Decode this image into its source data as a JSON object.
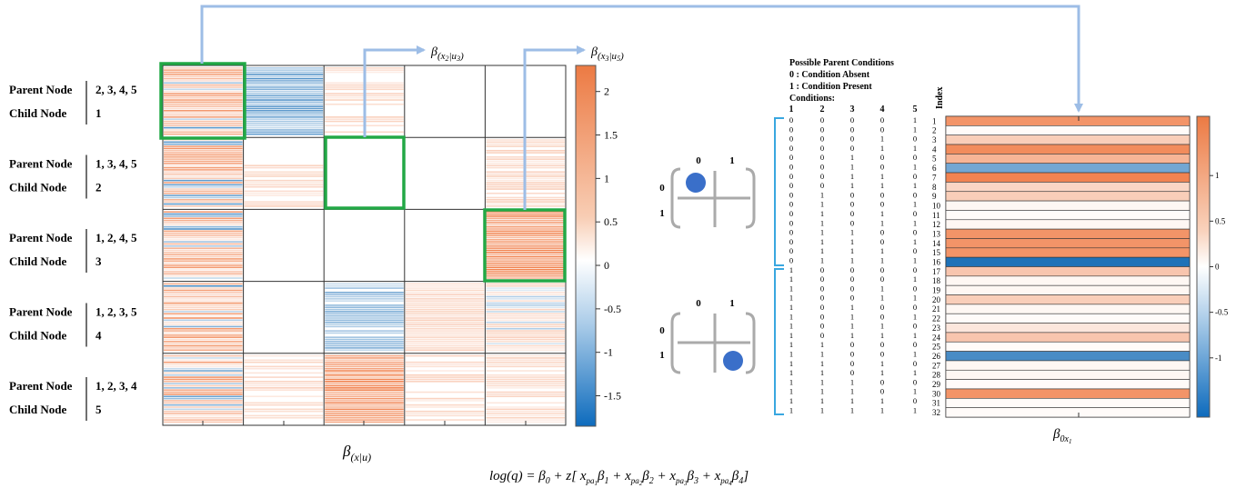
{
  "node_rows": [
    {
      "parent_label": "Parent Node",
      "parent_nodes": "2, 3, 4, 5",
      "child_label": "Child Node",
      "child_node": "1"
    },
    {
      "parent_label": "Parent Node",
      "parent_nodes": "1, 3, 4, 5",
      "child_label": "Child Node",
      "child_node": "2"
    },
    {
      "parent_label": "Parent Node",
      "parent_nodes": "1, 2, 4, 5",
      "child_label": "Child Node",
      "child_node": "3"
    },
    {
      "parent_label": "Parent Node",
      "parent_nodes": "1, 2, 3, 5",
      "child_label": "Child Node",
      "child_node": "4"
    },
    {
      "parent_label": "Parent Node",
      "parent_nodes": "1, 2, 3, 4",
      "child_label": "Child Node",
      "child_node": "5"
    }
  ],
  "grid_label": "β(x|u)",
  "callouts": [
    "β(x₂|u₃)",
    "β(x₃|u₅)"
  ],
  "main_colorbar_ticks": [
    "2",
    "1.5",
    "1",
    "0.5",
    "0",
    "-0.5",
    "-1",
    "-1.5"
  ],
  "legend_title": [
    "Possible Parent Conditions",
    "0 : Condition Absent",
    "1 : Condition Present",
    "Conditions:"
  ],
  "condition_columns": [
    "1",
    "2",
    "3",
    "4",
    "5"
  ],
  "index_header": "Index",
  "condition_rows": [
    [
      "0",
      "0",
      "0",
      "0",
      "1"
    ],
    [
      "0",
      "0",
      "0",
      "0",
      "1"
    ],
    [
      "0",
      "0",
      "0",
      "1",
      "0"
    ],
    [
      "0",
      "0",
      "0",
      "1",
      "1"
    ],
    [
      "0",
      "0",
      "1",
      "0",
      "0"
    ],
    [
      "0",
      "0",
      "1",
      "0",
      "1"
    ],
    [
      "0",
      "0",
      "1",
      "1",
      "0"
    ],
    [
      "0",
      "0",
      "1",
      "1",
      "1"
    ],
    [
      "0",
      "1",
      "0",
      "0",
      "0"
    ],
    [
      "0",
      "1",
      "0",
      "0",
      "1"
    ],
    [
      "0",
      "1",
      "0",
      "1",
      "0"
    ],
    [
      "0",
      "1",
      "0",
      "1",
      "1"
    ],
    [
      "0",
      "1",
      "1",
      "0",
      "0"
    ],
    [
      "0",
      "1",
      "1",
      "0",
      "1"
    ],
    [
      "0",
      "1",
      "1",
      "1",
      "0"
    ],
    [
      "0",
      "1",
      "1",
      "1",
      "1"
    ],
    [
      "1",
      "0",
      "0",
      "0",
      "0"
    ],
    [
      "1",
      "0",
      "0",
      "0",
      "1"
    ],
    [
      "1",
      "0",
      "0",
      "1",
      "0"
    ],
    [
      "1",
      "0",
      "0",
      "1",
      "1"
    ],
    [
      "1",
      "0",
      "1",
      "0",
      "0"
    ],
    [
      "1",
      "0",
      "1",
      "0",
      "1"
    ],
    [
      "1",
      "0",
      "1",
      "1",
      "0"
    ],
    [
      "1",
      "0",
      "1",
      "1",
      "1"
    ],
    [
      "1",
      "1",
      "0",
      "0",
      "0"
    ],
    [
      "1",
      "1",
      "0",
      "0",
      "1"
    ],
    [
      "1",
      "1",
      "0",
      "1",
      "0"
    ],
    [
      "1",
      "1",
      "0",
      "1",
      "1"
    ],
    [
      "1",
      "1",
      "1",
      "0",
      "0"
    ],
    [
      "1",
      "1",
      "1",
      "0",
      "1"
    ],
    [
      "1",
      "1",
      "1",
      "1",
      "0"
    ],
    [
      "1",
      "1",
      "1",
      "1",
      "1"
    ]
  ],
  "index_labels": [
    "1",
    "2",
    "3",
    "4",
    "5",
    "6",
    "7",
    "8",
    "9",
    "10",
    "11",
    "12",
    "13",
    "14",
    "15",
    "16",
    "17",
    "18",
    "19",
    "20",
    "21",
    "22",
    "23",
    "24",
    "25",
    "26",
    "27",
    "28",
    "29",
    "30",
    "31",
    "32"
  ],
  "beta0_values": [
    1.3,
    0.05,
    0.6,
    1.4,
    0.9,
    -1.0,
    1.5,
    0.5,
    0.6,
    0.1,
    0.05,
    0.1,
    1.3,
    1.3,
    1.3,
    -1.6,
    0.7,
    0.1,
    0.1,
    0.6,
    0.1,
    0.05,
    0.3,
    0.7,
    0.05,
    -1.3,
    0.1,
    0.1,
    0.05,
    1.3,
    0.05,
    0.05
  ],
  "side_colorbar_ticks": [
    "1",
    "0.5",
    "0",
    "-0.5",
    "-1"
  ],
  "matrix_header_cols": [
    "0",
    "1"
  ],
  "matrix_header_rows": [
    "0",
    "1"
  ],
  "beta0_label": "β0x1",
  "equation": "log(q) = β0 + z[ xpa1β1 + xpa2β2 + xpa3β3 + xpa4β4 ]",
  "colors": {
    "positive": "#f07b45",
    "negative": "#1f72b8",
    "highlight": "#22a846",
    "arrow": "#9dbde6",
    "bracket": "#39a7e0",
    "dot": "#3a6fc9"
  }
}
